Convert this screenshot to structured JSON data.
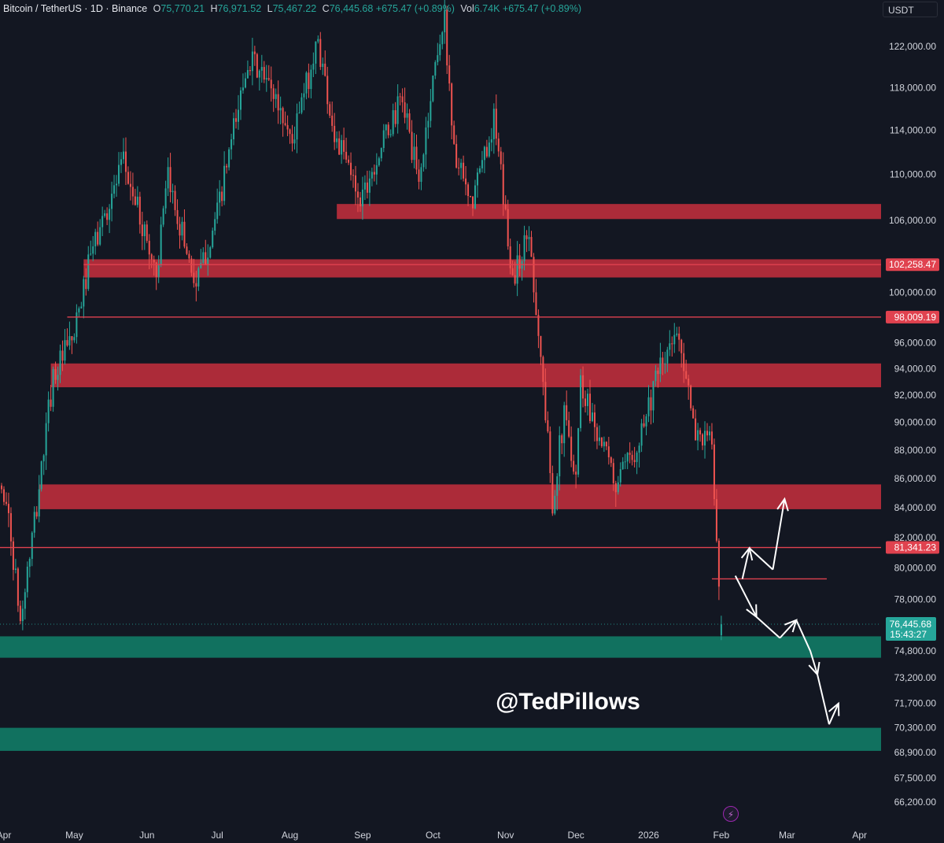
{
  "header": {
    "symbol": "Bitcoin / TetherUS · 1D · Binance",
    "open_label": "O",
    "open": "75,770.21",
    "high_label": "H",
    "high": "76,971.52",
    "low_label": "L",
    "low": "75,467.22",
    "close_label": "C",
    "close": "76,445.68",
    "change": "+675.47 (+0.89%)",
    "vol_label": "Vol",
    "vol": "6.74K",
    "vol_change": "+675.47 (+0.89%)"
  },
  "currency_selector": "USDT",
  "watermark": "@TedPillows",
  "colors": {
    "background": "#131722",
    "up": "#26a69a",
    "down": "#ef5350",
    "resistance_zone": "#b22c3a",
    "support_zone": "#127561",
    "level_line": "#e0424f"
  },
  "chart_data": {
    "type": "candlestick",
    "symbol": "BTCUSDT",
    "timeframe": "1D",
    "x_labels": [
      "Apr",
      "May",
      "Jun",
      "Jul",
      "Aug",
      "Sep",
      "Oct",
      "Nov",
      "Dec",
      "2026",
      "Feb",
      "Mar",
      "Apr"
    ],
    "y_labels": [
      "122,000.00",
      "118,000.00",
      "114,000.00",
      "110,000.00",
      "106,000.00",
      "100,000.00",
      "96,000.00",
      "94,000.00",
      "92,000.00",
      "90,000.00",
      "88,000.00",
      "86,000.00",
      "84,000.00",
      "82,000.00",
      "80,000.00",
      "78,000.00",
      "74,800.00",
      "73,200.00",
      "71,700.00",
      "70,300.00",
      "68,900.00",
      "67,500.00",
      "66,200.00"
    ],
    "y_range": [
      65000,
      126000
    ],
    "y_scale": "log",
    "price_path": [
      {
        "date": "2025-03-26",
        "price": 87000
      },
      {
        "date": "2025-04-02",
        "price": 84500
      },
      {
        "date": "2025-04-08",
        "price": 76500
      },
      {
        "date": "2025-04-15",
        "price": 84000
      },
      {
        "date": "2025-04-22",
        "price": 93500
      },
      {
        "date": "2025-05-01",
        "price": 96500
      },
      {
        "date": "2025-05-08",
        "price": 103000
      },
      {
        "date": "2025-05-22",
        "price": 111000
      },
      {
        "date": "2025-06-05",
        "price": 101500
      },
      {
        "date": "2025-06-10",
        "price": 109500
      },
      {
        "date": "2025-06-22",
        "price": 100500
      },
      {
        "date": "2025-07-01",
        "price": 106500
      },
      {
        "date": "2025-07-10",
        "price": 116000
      },
      {
        "date": "2025-07-14",
        "price": 121000
      },
      {
        "date": "2025-07-25",
        "price": 117500
      },
      {
        "date": "2025-08-02",
        "price": 113000
      },
      {
        "date": "2025-08-13",
        "price": 122500
      },
      {
        "date": "2025-08-20",
        "price": 113500
      },
      {
        "date": "2025-08-31",
        "price": 108000
      },
      {
        "date": "2025-09-18",
        "price": 117000
      },
      {
        "date": "2025-09-25",
        "price": 109000
      },
      {
        "date": "2025-10-03",
        "price": 122000
      },
      {
        "date": "2025-10-06",
        "price": 124500
      },
      {
        "date": "2025-10-10",
        "price": 112000
      },
      {
        "date": "2025-10-17",
        "price": 107000
      },
      {
        "date": "2025-10-27",
        "price": 115000
      },
      {
        "date": "2025-11-04",
        "price": 101000
      },
      {
        "date": "2025-11-11",
        "price": 105000
      },
      {
        "date": "2025-11-21",
        "price": 84500
      },
      {
        "date": "2025-11-26",
        "price": 90500
      },
      {
        "date": "2025-12-01",
        "price": 86500
      },
      {
        "date": "2025-12-03",
        "price": 93000
      },
      {
        "date": "2025-12-18",
        "price": 85500
      },
      {
        "date": "2025-12-25",
        "price": 87500
      },
      {
        "date": "2026-01-05",
        "price": 93500
      },
      {
        "date": "2026-01-14",
        "price": 97000
      },
      {
        "date": "2026-01-20",
        "price": 89500
      },
      {
        "date": "2026-01-28",
        "price": 88500
      },
      {
        "date": "2026-01-31",
        "price": 78000
      },
      {
        "date": "2026-02-01",
        "price": 76445.68
      }
    ],
    "zones": [
      {
        "type": "resistance",
        "low": 106100,
        "high": 107400,
        "from": "2025-08-21",
        "to": "right-edge"
      },
      {
        "type": "resistance",
        "low": 101200,
        "high": 102700,
        "from": "2025-05-05",
        "to": "right-edge"
      },
      {
        "type": "resistance",
        "low": 92600,
        "high": 94400,
        "from": "2025-04-21",
        "to": "right-edge"
      },
      {
        "type": "resistance",
        "low": 83900,
        "high": 85600,
        "from": "2025-04-16",
        "to": "right-edge"
      },
      {
        "type": "support",
        "low": 74400,
        "high": 75700,
        "from": "left-edge",
        "to": "right-edge"
      },
      {
        "type": "support",
        "low": 69000,
        "high": 70300,
        "from": "left-edge",
        "to": "right-edge"
      }
    ],
    "horizontal_lines": [
      {
        "price": 102258.47,
        "label": "102,258.47"
      },
      {
        "price": 98009.19,
        "label": "98,009.19"
      },
      {
        "price": 81341.23,
        "label": "81,341.23"
      },
      {
        "price": 79300,
        "label": ""
      }
    ],
    "last_price": {
      "price": 76445.68,
      "label": "76,445.68",
      "countdown": "15:43:27"
    },
    "projection_arrows": [
      {
        "scenario": "up",
        "path": [
          [
            79300,
            "2026-02-10"
          ],
          [
            81300,
            "2026-02-13"
          ],
          [
            79900,
            "2026-02-23"
          ],
          [
            84600,
            "2026-02-28"
          ]
        ]
      },
      {
        "scenario": "down",
        "path": [
          [
            79500,
            "2026-02-07"
          ],
          [
            76900,
            "2026-02-16"
          ],
          [
            75600,
            "2026-02-26"
          ],
          [
            76700,
            "2026-03-05"
          ],
          [
            74800,
            "2026-03-11"
          ],
          [
            73400,
            "2026-03-14"
          ],
          [
            70500,
            "2026-03-19"
          ],
          [
            71700,
            "2026-03-23"
          ]
        ]
      }
    ]
  }
}
